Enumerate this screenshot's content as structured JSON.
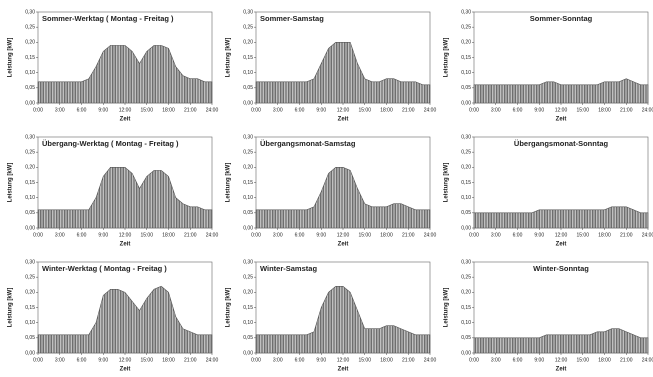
{
  "chart_data": [
    {
      "type": "area",
      "title": "Sommer-Werktag ( Montag - Freitag )",
      "x_label": "Zeit",
      "y_label": "Leistung [kW]",
      "color": "#555555",
      "x": [
        0,
        1,
        2,
        3,
        4,
        5,
        6,
        7,
        8,
        9,
        10,
        11,
        12,
        13,
        14,
        15,
        16,
        17,
        18,
        19,
        20,
        21,
        22,
        23,
        24
      ],
      "values": [
        0.07,
        0.07,
        0.07,
        0.07,
        0.07,
        0.07,
        0.07,
        0.08,
        0.12,
        0.17,
        0.19,
        0.19,
        0.19,
        0.17,
        0.13,
        0.17,
        0.19,
        0.19,
        0.18,
        0.12,
        0.09,
        0.08,
        0.08,
        0.07,
        0.07
      ],
      "xlim": [
        0,
        24
      ],
      "xticks": [
        {
          "value": 0,
          "label": "0:00"
        },
        {
          "value": 3,
          "label": "3:00"
        },
        {
          "value": 6,
          "label": "6:00"
        },
        {
          "value": 9,
          "label": "9:00"
        },
        {
          "value": 12,
          "label": "12:00"
        },
        {
          "value": 15,
          "label": "15:00"
        },
        {
          "value": 18,
          "label": "18:00"
        },
        {
          "value": 21,
          "label": "21:00"
        },
        {
          "value": 24,
          "label": "24:00"
        }
      ],
      "ylim": [
        0,
        0.3
      ],
      "yticks": [
        {
          "value": 0,
          "label": "0,00"
        },
        {
          "value": 0.05,
          "label": "0,05"
        },
        {
          "value": 0.1,
          "label": "0,10"
        },
        {
          "value": 0.15,
          "label": "0,15"
        },
        {
          "value": 0.2,
          "label": "0,20"
        },
        {
          "value": 0.25,
          "label": "0,25"
        },
        {
          "value": 0.3,
          "label": "0,30"
        }
      ]
    },
    {
      "type": "area",
      "title": "Sommer-Samstag",
      "x_label": "Zeit",
      "y_label": "Leistung [kW]",
      "color": "#555555",
      "x": [
        0,
        1,
        2,
        3,
        4,
        5,
        6,
        7,
        8,
        9,
        10,
        11,
        12,
        13,
        14,
        15,
        16,
        17,
        18,
        19,
        20,
        21,
        22,
        23,
        24
      ],
      "values": [
        0.07,
        0.07,
        0.07,
        0.07,
        0.07,
        0.07,
        0.07,
        0.07,
        0.08,
        0.13,
        0.18,
        0.2,
        0.2,
        0.2,
        0.13,
        0.08,
        0.07,
        0.07,
        0.08,
        0.08,
        0.07,
        0.07,
        0.07,
        0.06,
        0.06
      ],
      "xlim": [
        0,
        24
      ],
      "xticks": [
        {
          "value": 0,
          "label": "0:00"
        },
        {
          "value": 3,
          "label": "3:00"
        },
        {
          "value": 6,
          "label": "6:00"
        },
        {
          "value": 9,
          "label": "9:00"
        },
        {
          "value": 12,
          "label": "12:00"
        },
        {
          "value": 15,
          "label": "15:00"
        },
        {
          "value": 18,
          "label": "18:00"
        },
        {
          "value": 21,
          "label": "21:00"
        },
        {
          "value": 24,
          "label": "24:00"
        }
      ],
      "ylim": [
        0,
        0.3
      ],
      "yticks": [
        {
          "value": 0,
          "label": "0,00"
        },
        {
          "value": 0.05,
          "label": "0,05"
        },
        {
          "value": 0.1,
          "label": "0,10"
        },
        {
          "value": 0.15,
          "label": "0,15"
        },
        {
          "value": 0.2,
          "label": "0,20"
        },
        {
          "value": 0.25,
          "label": "0,25"
        },
        {
          "value": 0.3,
          "label": "0,30"
        }
      ]
    },
    {
      "type": "area",
      "title": "Sommer-Sonntag",
      "x_label": "Zeit",
      "y_label": "Leistung [kW]",
      "color": "#555555",
      "x": [
        0,
        1,
        2,
        3,
        4,
        5,
        6,
        7,
        8,
        9,
        10,
        11,
        12,
        13,
        14,
        15,
        16,
        17,
        18,
        19,
        20,
        21,
        22,
        23,
        24
      ],
      "values": [
        0.06,
        0.06,
        0.06,
        0.06,
        0.06,
        0.06,
        0.06,
        0.06,
        0.06,
        0.06,
        0.07,
        0.07,
        0.06,
        0.06,
        0.06,
        0.06,
        0.06,
        0.06,
        0.07,
        0.07,
        0.07,
        0.08,
        0.07,
        0.06,
        0.06
      ],
      "xlim": [
        0,
        24
      ],
      "xticks": [
        {
          "value": 0,
          "label": "0:00"
        },
        {
          "value": 3,
          "label": "3:00"
        },
        {
          "value": 6,
          "label": "6:00"
        },
        {
          "value": 9,
          "label": "9:00"
        },
        {
          "value": 12,
          "label": "12:00"
        },
        {
          "value": 15,
          "label": "15:00"
        },
        {
          "value": 18,
          "label": "18:00"
        },
        {
          "value": 21,
          "label": "21:00"
        },
        {
          "value": 24,
          "label": "24:00"
        }
      ],
      "ylim": [
        0,
        0.3
      ],
      "yticks": [
        {
          "value": 0,
          "label": "0,00"
        },
        {
          "value": 0.05,
          "label": "0,05"
        },
        {
          "value": 0.1,
          "label": "0,10"
        },
        {
          "value": 0.15,
          "label": "0,15"
        },
        {
          "value": 0.2,
          "label": "0,20"
        },
        {
          "value": 0.25,
          "label": "0,25"
        },
        {
          "value": 0.3,
          "label": "0,30"
        }
      ]
    },
    {
      "type": "area",
      "title": "Übergang-Werktag ( Montag - Freitag )",
      "x_label": "Zeit",
      "y_label": "Leistung [kW]",
      "color": "#555555",
      "x": [
        0,
        1,
        2,
        3,
        4,
        5,
        6,
        7,
        8,
        9,
        10,
        11,
        12,
        13,
        14,
        15,
        16,
        17,
        18,
        19,
        20,
        21,
        22,
        23,
        24
      ],
      "values": [
        0.06,
        0.06,
        0.06,
        0.06,
        0.06,
        0.06,
        0.06,
        0.06,
        0.1,
        0.17,
        0.2,
        0.2,
        0.2,
        0.18,
        0.13,
        0.17,
        0.19,
        0.19,
        0.17,
        0.1,
        0.08,
        0.07,
        0.07,
        0.06,
        0.06
      ],
      "xlim": [
        0,
        24
      ],
      "xticks": [
        {
          "value": 0,
          "label": "0:00"
        },
        {
          "value": 3,
          "label": "3:00"
        },
        {
          "value": 6,
          "label": "6:00"
        },
        {
          "value": 9,
          "label": "9:00"
        },
        {
          "value": 12,
          "label": "12:00"
        },
        {
          "value": 15,
          "label": "15:00"
        },
        {
          "value": 18,
          "label": "18:00"
        },
        {
          "value": 21,
          "label": "21:00"
        },
        {
          "value": 24,
          "label": "24:00"
        }
      ],
      "ylim": [
        0,
        0.3
      ],
      "yticks": [
        {
          "value": 0,
          "label": "0,00"
        },
        {
          "value": 0.05,
          "label": "0,05"
        },
        {
          "value": 0.1,
          "label": "0,10"
        },
        {
          "value": 0.15,
          "label": "0,15"
        },
        {
          "value": 0.2,
          "label": "0,20"
        },
        {
          "value": 0.25,
          "label": "0,25"
        },
        {
          "value": 0.3,
          "label": "0,30"
        }
      ]
    },
    {
      "type": "area",
      "title": "Übergangsmonat-Samstag",
      "x_label": "Zeit",
      "y_label": "Leistung [kW]",
      "color": "#555555",
      "x": [
        0,
        1,
        2,
        3,
        4,
        5,
        6,
        7,
        8,
        9,
        10,
        11,
        12,
        13,
        14,
        15,
        16,
        17,
        18,
        19,
        20,
        21,
        22,
        23,
        24
      ],
      "values": [
        0.06,
        0.06,
        0.06,
        0.06,
        0.06,
        0.06,
        0.06,
        0.06,
        0.07,
        0.12,
        0.18,
        0.2,
        0.2,
        0.19,
        0.13,
        0.08,
        0.07,
        0.07,
        0.07,
        0.08,
        0.08,
        0.07,
        0.06,
        0.06,
        0.06
      ],
      "xlim": [
        0,
        24
      ],
      "xticks": [
        {
          "value": 0,
          "label": "0:00"
        },
        {
          "value": 3,
          "label": "3:00"
        },
        {
          "value": 6,
          "label": "6:00"
        },
        {
          "value": 9,
          "label": "9:00"
        },
        {
          "value": 12,
          "label": "12:00"
        },
        {
          "value": 15,
          "label": "15:00"
        },
        {
          "value": 18,
          "label": "18:00"
        },
        {
          "value": 21,
          "label": "21:00"
        },
        {
          "value": 24,
          "label": "24:00"
        }
      ],
      "ylim": [
        0,
        0.3
      ],
      "yticks": [
        {
          "value": 0,
          "label": "0,00"
        },
        {
          "value": 0.05,
          "label": "0,05"
        },
        {
          "value": 0.1,
          "label": "0,10"
        },
        {
          "value": 0.15,
          "label": "0,15"
        },
        {
          "value": 0.2,
          "label": "0,20"
        },
        {
          "value": 0.25,
          "label": "0,25"
        },
        {
          "value": 0.3,
          "label": "0,30"
        }
      ]
    },
    {
      "type": "area",
      "title": "Übergangsmonat-Sonntag",
      "x_label": "Zeit",
      "y_label": "Leistung [kW]",
      "color": "#555555",
      "x": [
        0,
        1,
        2,
        3,
        4,
        5,
        6,
        7,
        8,
        9,
        10,
        11,
        12,
        13,
        14,
        15,
        16,
        17,
        18,
        19,
        20,
        21,
        22,
        23,
        24
      ],
      "values": [
        0.05,
        0.05,
        0.05,
        0.05,
        0.05,
        0.05,
        0.05,
        0.05,
        0.05,
        0.06,
        0.06,
        0.06,
        0.06,
        0.06,
        0.06,
        0.06,
        0.06,
        0.06,
        0.06,
        0.07,
        0.07,
        0.07,
        0.06,
        0.05,
        0.05
      ],
      "xlim": [
        0,
        24
      ],
      "xticks": [
        {
          "value": 0,
          "label": "0:00"
        },
        {
          "value": 3,
          "label": "3:00"
        },
        {
          "value": 6,
          "label": "6:00"
        },
        {
          "value": 9,
          "label": "9:00"
        },
        {
          "value": 12,
          "label": "12:00"
        },
        {
          "value": 15,
          "label": "15:00"
        },
        {
          "value": 18,
          "label": "18:00"
        },
        {
          "value": 21,
          "label": "21:00"
        },
        {
          "value": 24,
          "label": "24:00"
        }
      ],
      "ylim": [
        0,
        0.3
      ],
      "yticks": [
        {
          "value": 0,
          "label": "0,00"
        },
        {
          "value": 0.05,
          "label": "0,05"
        },
        {
          "value": 0.1,
          "label": "0,10"
        },
        {
          "value": 0.15,
          "label": "0,15"
        },
        {
          "value": 0.2,
          "label": "0,20"
        },
        {
          "value": 0.25,
          "label": "0,25"
        },
        {
          "value": 0.3,
          "label": "0,30"
        }
      ]
    },
    {
      "type": "area",
      "title": "Winter-Werktag ( Montag - Freitag )",
      "x_label": "Zeit",
      "y_label": "Leistung [kW]",
      "color": "#555555",
      "x": [
        0,
        1,
        2,
        3,
        4,
        5,
        6,
        7,
        8,
        9,
        10,
        11,
        12,
        13,
        14,
        15,
        16,
        17,
        18,
        19,
        20,
        21,
        22,
        23,
        24
      ],
      "values": [
        0.06,
        0.06,
        0.06,
        0.06,
        0.06,
        0.06,
        0.06,
        0.06,
        0.1,
        0.19,
        0.21,
        0.21,
        0.2,
        0.17,
        0.14,
        0.18,
        0.21,
        0.22,
        0.2,
        0.12,
        0.08,
        0.07,
        0.06,
        0.06,
        0.06
      ],
      "xlim": [
        0,
        24
      ],
      "xticks": [
        {
          "value": 0,
          "label": "0:00"
        },
        {
          "value": 3,
          "label": "3:00"
        },
        {
          "value": 6,
          "label": "6:00"
        },
        {
          "value": 9,
          "label": "9:00"
        },
        {
          "value": 12,
          "label": "12:00"
        },
        {
          "value": 15,
          "label": "15:00"
        },
        {
          "value": 18,
          "label": "18:00"
        },
        {
          "value": 21,
          "label": "21:00"
        },
        {
          "value": 24,
          "label": "24:00"
        }
      ],
      "ylim": [
        0,
        0.3
      ],
      "yticks": [
        {
          "value": 0,
          "label": "0,00"
        },
        {
          "value": 0.05,
          "label": "0,05"
        },
        {
          "value": 0.1,
          "label": "0,10"
        },
        {
          "value": 0.15,
          "label": "0,15"
        },
        {
          "value": 0.2,
          "label": "0,20"
        },
        {
          "value": 0.25,
          "label": "0,25"
        },
        {
          "value": 0.3,
          "label": "0,30"
        }
      ]
    },
    {
      "type": "area",
      "title": "Winter-Samstag",
      "x_label": "Zeit",
      "y_label": "Leistung [kW]",
      "color": "#555555",
      "x": [
        0,
        1,
        2,
        3,
        4,
        5,
        6,
        7,
        8,
        9,
        10,
        11,
        12,
        13,
        14,
        15,
        16,
        17,
        18,
        19,
        20,
        21,
        22,
        23,
        24
      ],
      "values": [
        0.06,
        0.06,
        0.06,
        0.06,
        0.06,
        0.06,
        0.06,
        0.06,
        0.07,
        0.15,
        0.2,
        0.22,
        0.22,
        0.2,
        0.14,
        0.08,
        0.08,
        0.08,
        0.09,
        0.09,
        0.08,
        0.07,
        0.06,
        0.06,
        0.06
      ],
      "xlim": [
        0,
        24
      ],
      "xticks": [
        {
          "value": 0,
          "label": "0:00"
        },
        {
          "value": 3,
          "label": "3:00"
        },
        {
          "value": 6,
          "label": "6:00"
        },
        {
          "value": 9,
          "label": "9:00"
        },
        {
          "value": 12,
          "label": "12:00"
        },
        {
          "value": 15,
          "label": "15:00"
        },
        {
          "value": 18,
          "label": "18:00"
        },
        {
          "value": 21,
          "label": "21:00"
        },
        {
          "value": 24,
          "label": "24:00"
        }
      ],
      "ylim": [
        0,
        0.3
      ],
      "yticks": [
        {
          "value": 0,
          "label": "0,00"
        },
        {
          "value": 0.05,
          "label": "0,05"
        },
        {
          "value": 0.1,
          "label": "0,10"
        },
        {
          "value": 0.15,
          "label": "0,15"
        },
        {
          "value": 0.2,
          "label": "0,20"
        },
        {
          "value": 0.25,
          "label": "0,25"
        },
        {
          "value": 0.3,
          "label": "0,30"
        }
      ]
    },
    {
      "type": "area",
      "title": "Winter-Sonntag",
      "x_label": "Zeit",
      "y_label": "Leistung [kW]",
      "color": "#555555",
      "x": [
        0,
        1,
        2,
        3,
        4,
        5,
        6,
        7,
        8,
        9,
        10,
        11,
        12,
        13,
        14,
        15,
        16,
        17,
        18,
        19,
        20,
        21,
        22,
        23,
        24
      ],
      "values": [
        0.05,
        0.05,
        0.05,
        0.05,
        0.05,
        0.05,
        0.05,
        0.05,
        0.05,
        0.05,
        0.06,
        0.06,
        0.06,
        0.06,
        0.06,
        0.06,
        0.06,
        0.07,
        0.07,
        0.08,
        0.08,
        0.07,
        0.06,
        0.05,
        0.05
      ],
      "xlim": [
        0,
        24
      ],
      "xticks": [
        {
          "value": 0,
          "label": "0:00"
        },
        {
          "value": 3,
          "label": "3:00"
        },
        {
          "value": 6,
          "label": "6:00"
        },
        {
          "value": 9,
          "label": "9:00"
        },
        {
          "value": 12,
          "label": "12:00"
        },
        {
          "value": 15,
          "label": "15:00"
        },
        {
          "value": 18,
          "label": "18:00"
        },
        {
          "value": 21,
          "label": "21:00"
        },
        {
          "value": 24,
          "label": "24:00"
        }
      ],
      "ylim": [
        0,
        0.3
      ],
      "yticks": [
        {
          "value": 0,
          "label": "0,00"
        },
        {
          "value": 0.05,
          "label": "0,05"
        },
        {
          "value": 0.1,
          "label": "0,10"
        },
        {
          "value": 0.15,
          "label": "0,15"
        },
        {
          "value": 0.2,
          "label": "0,20"
        },
        {
          "value": 0.25,
          "label": "0,25"
        },
        {
          "value": 0.3,
          "label": "0,30"
        }
      ]
    }
  ]
}
